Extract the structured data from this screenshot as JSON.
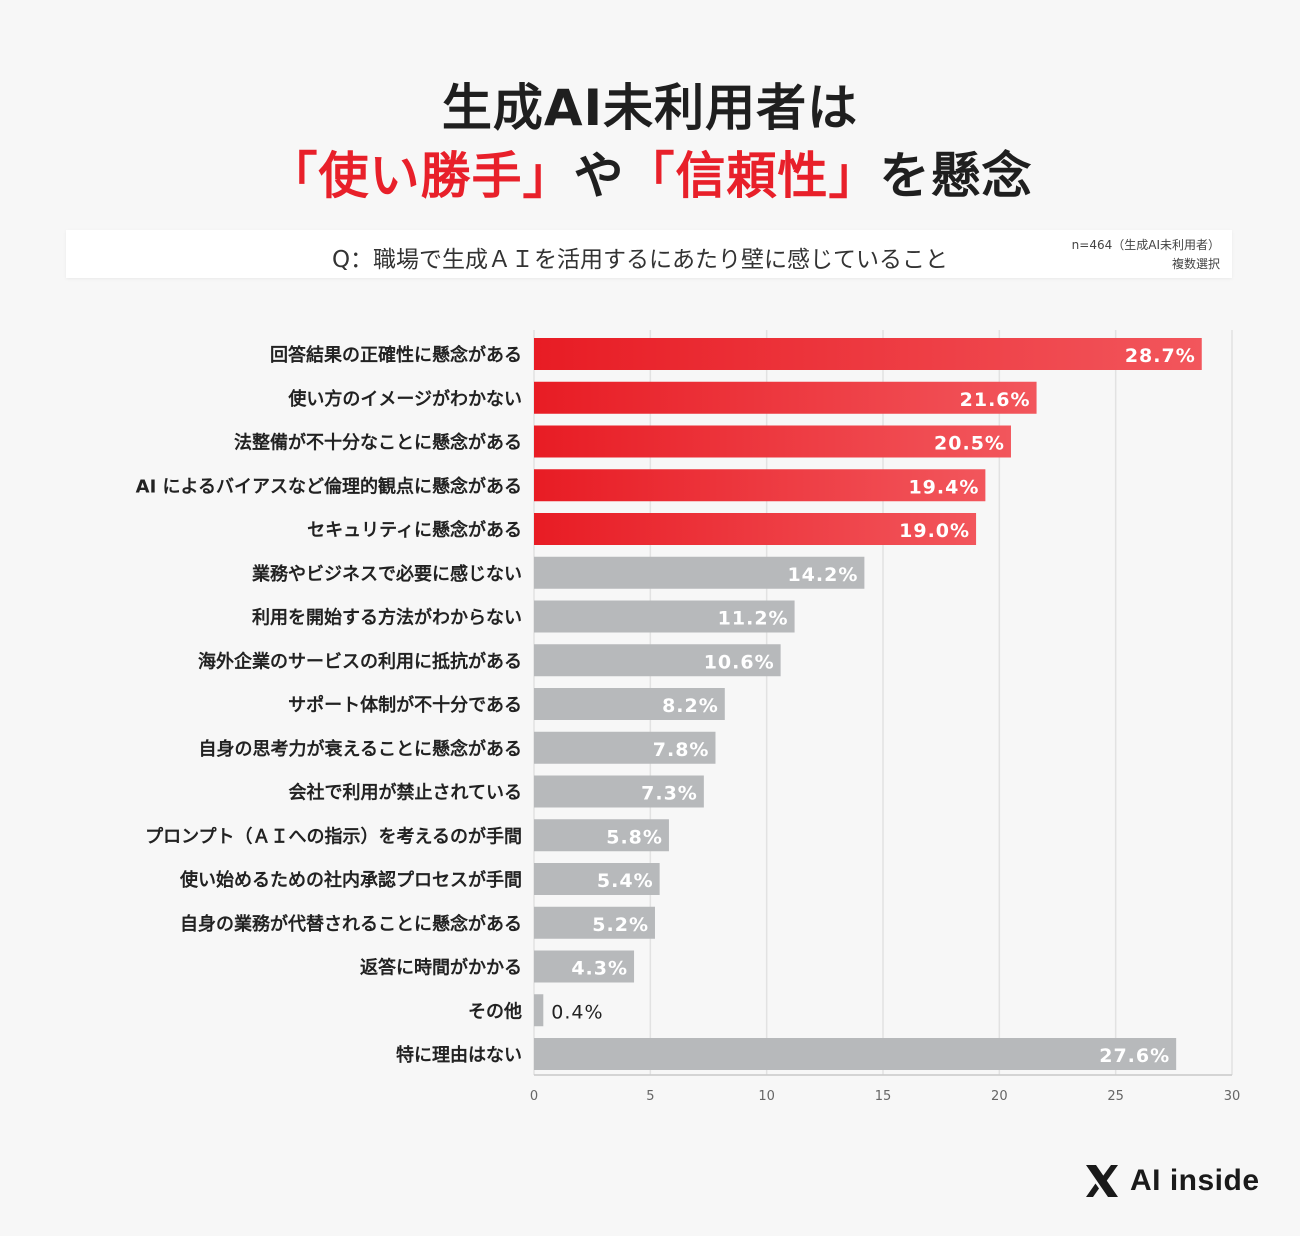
{
  "title": {
    "line1": "生成AI未利用者は",
    "line2_part1": "「使い勝手」",
    "line2_part2": "や",
    "line2_part3": "「信頼性」",
    "line2_part4": "を懸念"
  },
  "question": "Q：職場で生成ＡＩを活用するにあたり壁に感じていること",
  "sample": {
    "line1": "n=464（生成AI未利用者）",
    "line2": "複数選択"
  },
  "colors": {
    "highlight": "#f0242c",
    "highlight_light": "#f2565c",
    "neutral": "#b7b9bb",
    "grid": "#e2e2e2",
    "axis_text": "#666666",
    "label_text": "#222222"
  },
  "chart_data": {
    "type": "bar",
    "orientation": "horizontal",
    "categories": [
      "回答結果の正確性に懸念がある",
      "使い方のイメージがわかない",
      "法整備が不十分なことに懸念がある",
      "AI によるバイアスなど倫理的観点に懸念がある",
      "セキュリティに懸念がある",
      "業務やビジネスで必要に感じない",
      "利用を開始する方法がわからない",
      "海外企業のサービスの利用に抵抗がある",
      "サポート体制が不十分である",
      "自身の思考力が衰えることに懸念がある",
      "会社で利用が禁止されている",
      "プロンプト（ＡＩへの指示）を考えるのが手間",
      "使い始めるための社内承認プロセスが手間",
      "自身の業務が代替されることに懸念がある",
      "返答に時間がかかる",
      "その他",
      "特に理由はない"
    ],
    "values": [
      28.7,
      21.6,
      20.5,
      19.4,
      19.0,
      14.2,
      11.2,
      10.6,
      8.2,
      7.8,
      7.3,
      5.8,
      5.4,
      5.2,
      4.3,
      0.4,
      27.6
    ],
    "value_labels": [
      "28.7%",
      "21.6%",
      "20.5%",
      "19.4%",
      "19.0%",
      "14.2%",
      "11.2%",
      "10.6%",
      "8.2%",
      "7.8%",
      "7.3%",
      "5.8%",
      "5.4%",
      "5.2%",
      "4.3%",
      "0.4%",
      "27.6%"
    ],
    "highlighted_count": 5,
    "xlim": [
      0,
      30
    ],
    "xticks": [
      0,
      5,
      10,
      15,
      20,
      25,
      30
    ],
    "xtick_labels": [
      "0",
      "5",
      "10",
      "15",
      "20",
      "25",
      "30"
    ],
    "grid": true
  },
  "logo": {
    "icon": "x-mark-icon",
    "text": "AI inside"
  }
}
